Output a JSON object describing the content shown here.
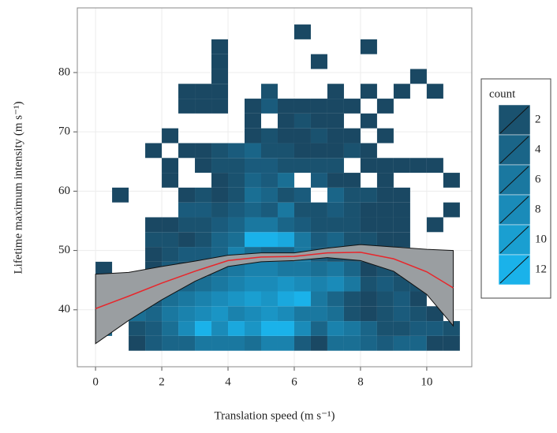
{
  "chart_data": {
    "type": "bin2d",
    "x_label": "Translation speed (m s⁻¹)",
    "y_label": "Lifetime maximum intensity (m s⁻¹)",
    "xlim": [
      -0.55,
      11.36
    ],
    "ylim": [
      30.4,
      90.9
    ],
    "xticks": [
      0,
      2,
      4,
      6,
      8,
      10
    ],
    "yticks": [
      40,
      50,
      60,
      70,
      80
    ],
    "grid": true,
    "color_low": "#1a4863",
    "color_high": "#1ab2ea",
    "x_edges": [
      0,
      0.5,
      1,
      1.5,
      2,
      2.5,
      3,
      3.5,
      4,
      4.5,
      5,
      5.5,
      6,
      6.5,
      7,
      7.5,
      8,
      8.5,
      9,
      9.5,
      10,
      10.5,
      11
    ],
    "y_edges": [
      33.1,
      35.6,
      38.1,
      40.6,
      43.1,
      45.6,
      48.1,
      50.6,
      53.1,
      55.6,
      58.1,
      60.6,
      63.1,
      65.6,
      68.1,
      70.6,
      73.1,
      75.6,
      78.1,
      80.6,
      83.1,
      85.6,
      88.1
    ],
    "values": [
      [
        null,
        null,
        1,
        3,
        4,
        4,
        6,
        6,
        6,
        5,
        7,
        7,
        3,
        1,
        5,
        5,
        4,
        3,
        4,
        4,
        1,
        1
      ],
      [
        4,
        null,
        2,
        3,
        5,
        8,
        12,
        8,
        11,
        9,
        12,
        12,
        8,
        4,
        7,
        6,
        4,
        2,
        2,
        3,
        3,
        2
      ],
      [
        null,
        4,
        5,
        4,
        6,
        7,
        8,
        9,
        7,
        8,
        9,
        8,
        6,
        6,
        5,
        2,
        1,
        2,
        3,
        2,
        1,
        null
      ],
      [
        null,
        null,
        3,
        3,
        5,
        6,
        7,
        8,
        9,
        10,
        9,
        11,
        12,
        6,
        4,
        2,
        1,
        2,
        3,
        1,
        null,
        null
      ],
      [
        null,
        null,
        null,
        2,
        3,
        4,
        5,
        6,
        7,
        8,
        8,
        9,
        8,
        7,
        8,
        6,
        2,
        3,
        2,
        2,
        null,
        null
      ],
      [
        1,
        null,
        null,
        1,
        3,
        2,
        3,
        5,
        6,
        7,
        7,
        6,
        6,
        5,
        6,
        4,
        1,
        2,
        1,
        2,
        null,
        null
      ],
      [
        null,
        null,
        null,
        1,
        2,
        3,
        3,
        4,
        7,
        5,
        4,
        4,
        6,
        3,
        2,
        2,
        3,
        2,
        2,
        null,
        null,
        null
      ],
      [
        null,
        null,
        null,
        2,
        2,
        1,
        2,
        4,
        5,
        12,
        12,
        11,
        6,
        3,
        4,
        2,
        2,
        1,
        1,
        null,
        null,
        null
      ],
      [
        null,
        null,
        null,
        1,
        1,
        2,
        2,
        3,
        4,
        6,
        6,
        4,
        3,
        2,
        2,
        2,
        1,
        1,
        1,
        null,
        1,
        null
      ],
      [
        null,
        null,
        null,
        null,
        null,
        3,
        3,
        2,
        3,
        4,
        3,
        6,
        2,
        2,
        3,
        2,
        1,
        1,
        1,
        null,
        null,
        1
      ],
      [
        null,
        1,
        null,
        null,
        null,
        1,
        2,
        1,
        2,
        5,
        4,
        2,
        3,
        null,
        4,
        2,
        2,
        1,
        1,
        null,
        null,
        null
      ],
      [
        null,
        null,
        null,
        null,
        1,
        null,
        null,
        1,
        2,
        4,
        3,
        5,
        null,
        3,
        1,
        1,
        null,
        1,
        null,
        null,
        null,
        1
      ],
      [
        null,
        null,
        null,
        null,
        1,
        null,
        1,
        2,
        2,
        3,
        3,
        2,
        2,
        2,
        2,
        null,
        1,
        1,
        1,
        1,
        1,
        null
      ],
      [
        null,
        null,
        null,
        1,
        null,
        1,
        1,
        2,
        3,
        4,
        2,
        2,
        1,
        1,
        1,
        2,
        1,
        null,
        null,
        null,
        null,
        null
      ],
      [
        null,
        null,
        null,
        null,
        1,
        null,
        null,
        null,
        null,
        1,
        2,
        1,
        1,
        2,
        1,
        1,
        null,
        1,
        null,
        null,
        null,
        null
      ],
      [
        null,
        null,
        null,
        null,
        null,
        null,
        null,
        null,
        null,
        1,
        null,
        1,
        2,
        1,
        1,
        null,
        1,
        null,
        null,
        null,
        null,
        null
      ],
      [
        null,
        null,
        null,
        null,
        null,
        1,
        1,
        1,
        null,
        1,
        3,
        1,
        1,
        1,
        1,
        1,
        null,
        1,
        null,
        null,
        null,
        null
      ],
      [
        null,
        null,
        null,
        null,
        null,
        1,
        1,
        1,
        null,
        null,
        2,
        null,
        null,
        null,
        1,
        null,
        1,
        null,
        1,
        null,
        1,
        null
      ],
      [
        null,
        null,
        null,
        null,
        null,
        null,
        null,
        1,
        null,
        null,
        null,
        null,
        null,
        null,
        null,
        null,
        null,
        null,
        null,
        1,
        null,
        null
      ],
      [
        null,
        null,
        null,
        null,
        null,
        null,
        null,
        1,
        null,
        null,
        null,
        null,
        null,
        1,
        null,
        null,
        null,
        null,
        null,
        null,
        null,
        null
      ],
      [
        null,
        null,
        null,
        null,
        null,
        null,
        null,
        1,
        null,
        null,
        null,
        null,
        null,
        null,
        null,
        null,
        1,
        null,
        null,
        null,
        null,
        null
      ],
      [
        null,
        null,
        null,
        null,
        null,
        null,
        null,
        null,
        null,
        null,
        null,
        null,
        1,
        null,
        null,
        null,
        null,
        null,
        null,
        null,
        null,
        null
      ]
    ],
    "smooth": {
      "color": "#e8262b",
      "band_color": "#9a9ea1",
      "x": [
        0,
        1,
        2,
        3,
        4,
        5,
        6,
        7,
        8,
        9,
        10,
        10.8
      ],
      "y": [
        40.2,
        42.3,
        44.5,
        46.5,
        48.3,
        48.9,
        49.0,
        49.6,
        49.7,
        48.6,
        46.4,
        43.7
      ],
      "upper": [
        46.0,
        46.3,
        47.3,
        48.2,
        49.2,
        49.6,
        49.6,
        50.4,
        51.0,
        50.6,
        50.2,
        50.0
      ],
      "lower": [
        34.3,
        38.2,
        41.7,
        44.8,
        47.3,
        48.1,
        48.3,
        48.8,
        48.3,
        46.5,
        42.6,
        37.3
      ]
    },
    "legend": {
      "title": "count",
      "ticks": [
        2,
        4,
        6,
        8,
        10,
        12
      ]
    }
  }
}
